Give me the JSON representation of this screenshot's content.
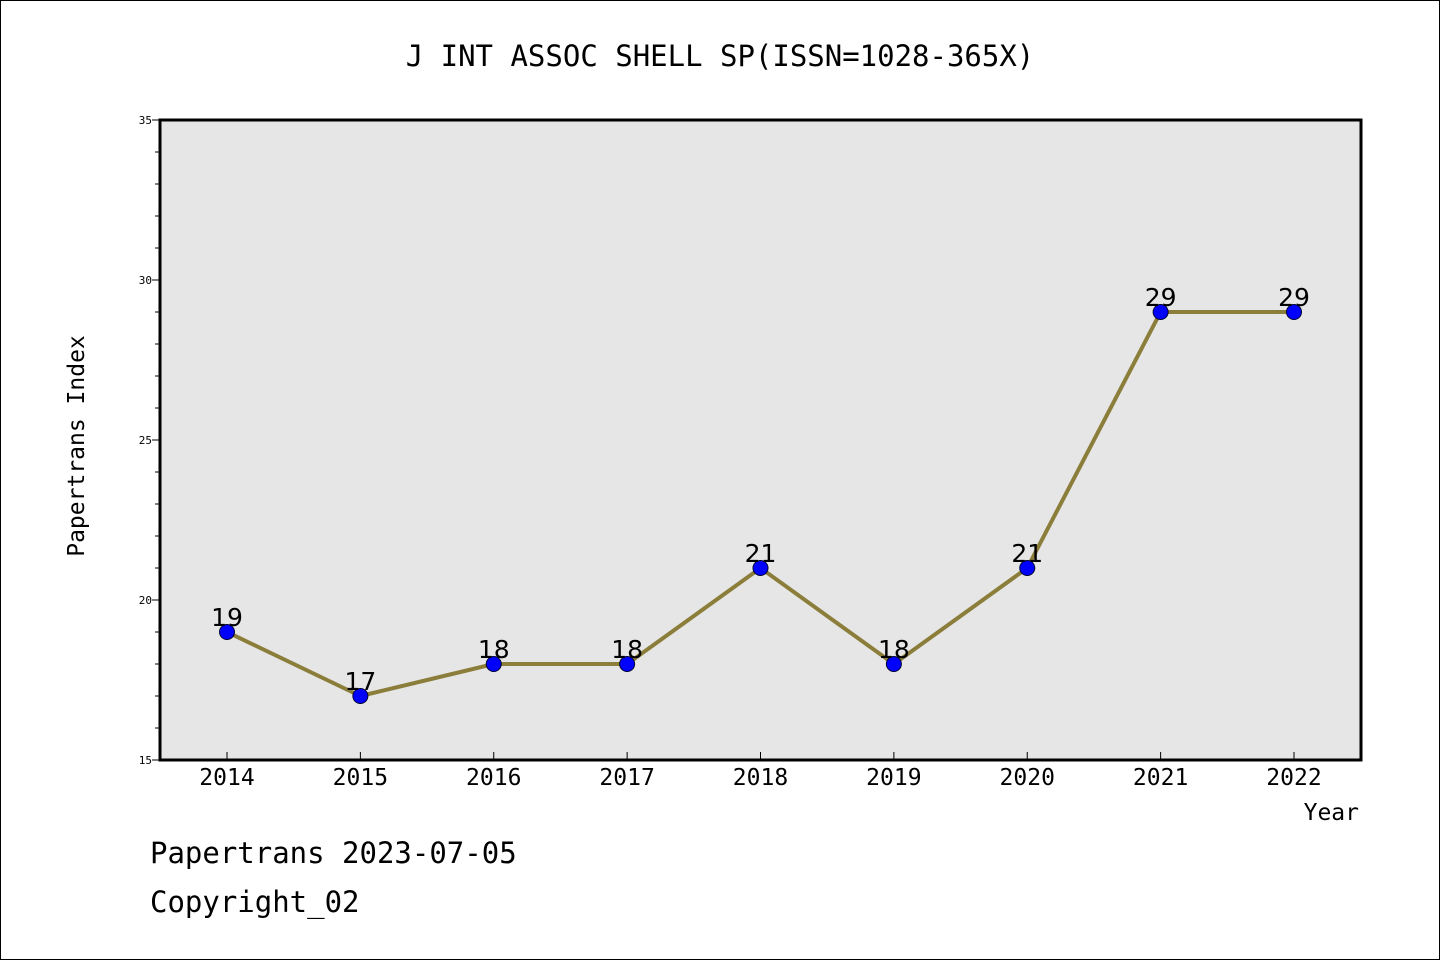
{
  "chart_data": {
    "type": "line",
    "title": "J INT ASSOC SHELL SP(ISSN=1028-365X)",
    "xlabel": "Year",
    "ylabel": "Papertrans Index",
    "categories": [
      "2014",
      "2015",
      "2016",
      "2017",
      "2018",
      "2019",
      "2020",
      "2021",
      "2022"
    ],
    "series": [
      {
        "values": [
          19,
          17,
          18,
          18,
          21,
          18,
          21,
          29,
          29
        ],
        "data_labels": [
          "19",
          "17",
          "18",
          "18",
          "21",
          "18",
          "21",
          "29",
          "29"
        ]
      }
    ],
    "ylim": [
      15,
      35
    ],
    "y_ticks": [
      "15",
      "20",
      "25",
      "30",
      "35"
    ],
    "grid": false,
    "colors": {
      "line": "#8b7d3a",
      "marker": "#0000ff",
      "plot_background": "#e6e6e6"
    }
  },
  "footer": {
    "line1": "Papertrans 2023-07-05",
    "line2": "Copyright_02"
  }
}
